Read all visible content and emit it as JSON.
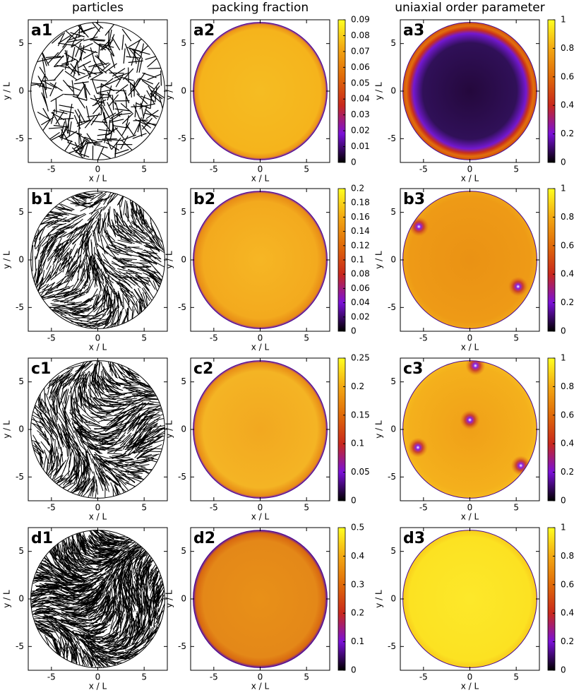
{
  "column_titles": [
    "particles",
    "packing fraction",
    "uniaxial order parameter"
  ],
  "panels": [
    {
      "label": "a1",
      "xlabel": "x / L",
      "ylabel": "y / L",
      "xlim": [
        -7.5,
        7.5
      ],
      "ylim": [
        -7.5,
        7.5
      ],
      "xticks": [
        -5,
        0,
        5
      ],
      "yticks": [
        -5,
        0,
        5
      ]
    },
    {
      "label": "a2",
      "xlabel": "x / L",
      "ylabel": "y / L",
      "xlim": [
        -7.5,
        7.5
      ],
      "ylim": [
        -7.5,
        7.5
      ],
      "xticks": [
        -5,
        0,
        5
      ],
      "yticks": [
        -5,
        0,
        5
      ],
      "clim": [
        0,
        0.09
      ],
      "cticks": [
        0,
        0.01,
        0.02,
        0.03,
        0.04,
        0.05,
        0.06,
        0.07,
        0.08,
        0.09
      ]
    },
    {
      "label": "a3",
      "xlabel": "x / L",
      "ylabel": "y / L",
      "xlim": [
        -7.5,
        7.5
      ],
      "ylim": [
        -7.5,
        7.5
      ],
      "xticks": [
        -5,
        0,
        5
      ],
      "yticks": [
        -5,
        0,
        5
      ],
      "clim": [
        0,
        1
      ],
      "cticks": [
        0,
        0.2,
        0.4,
        0.6,
        0.8,
        1
      ]
    },
    {
      "label": "b1",
      "xlabel": "x / L",
      "ylabel": "y / L",
      "xlim": [
        -7.5,
        7.5
      ],
      "ylim": [
        -7.5,
        7.5
      ],
      "xticks": [
        -5,
        0,
        5
      ],
      "yticks": [
        -5,
        0,
        5
      ]
    },
    {
      "label": "b2",
      "xlabel": "x / L",
      "ylabel": "y / L",
      "xlim": [
        -7.5,
        7.5
      ],
      "ylim": [
        -7.5,
        7.5
      ],
      "xticks": [
        -5,
        0,
        5
      ],
      "yticks": [
        -5,
        0,
        5
      ],
      "clim": [
        0,
        0.2
      ],
      "cticks": [
        0,
        0.02,
        0.04,
        0.06,
        0.08,
        0.1,
        0.12,
        0.14,
        0.16,
        0.18,
        0.2
      ]
    },
    {
      "label": "b3",
      "xlabel": "x / L",
      "ylabel": "y / L",
      "xlim": [
        -7.5,
        7.5
      ],
      "ylim": [
        -7.5,
        7.5
      ],
      "xticks": [
        -5,
        0,
        5
      ],
      "yticks": [
        -5,
        0,
        5
      ],
      "clim": [
        0,
        1
      ],
      "cticks": [
        0,
        0.2,
        0.4,
        0.6,
        0.8,
        1
      ]
    },
    {
      "label": "c1",
      "xlabel": "x / L",
      "ylabel": "y / L",
      "xlim": [
        -7.5,
        7.5
      ],
      "ylim": [
        -7.5,
        7.5
      ],
      "xticks": [
        -5,
        0,
        5
      ],
      "yticks": [
        -5,
        0,
        5
      ]
    },
    {
      "label": "c2",
      "xlabel": "x / L",
      "ylabel": "y / L",
      "xlim": [
        -7.5,
        7.5
      ],
      "ylim": [
        -7.5,
        7.5
      ],
      "xticks": [
        -5,
        0,
        5
      ],
      "yticks": [
        -5,
        0,
        5
      ],
      "clim": [
        0,
        0.25
      ],
      "cticks": [
        0,
        0.05,
        0.1,
        0.15,
        0.2,
        0.25
      ]
    },
    {
      "label": "c3",
      "xlabel": "x / L",
      "ylabel": "y / L",
      "xlim": [
        -7.5,
        7.5
      ],
      "ylim": [
        -7.5,
        7.5
      ],
      "xticks": [
        -5,
        0,
        5
      ],
      "yticks": [
        -5,
        0,
        5
      ],
      "clim": [
        0,
        1
      ],
      "cticks": [
        0,
        0.2,
        0.4,
        0.6,
        0.8,
        1
      ]
    },
    {
      "label": "d1",
      "xlabel": "x / L",
      "ylabel": "y / L",
      "xlim": [
        -7.5,
        7.5
      ],
      "ylim": [
        -7.5,
        7.5
      ],
      "xticks": [
        -5,
        0,
        5
      ],
      "yticks": [
        -5,
        0,
        5
      ]
    },
    {
      "label": "d2",
      "xlabel": "x / L",
      "ylabel": "y / L",
      "xlim": [
        -7.5,
        7.5
      ],
      "ylim": [
        -7.5,
        7.5
      ],
      "xticks": [
        -5,
        0,
        5
      ],
      "yticks": [
        -5,
        0,
        5
      ],
      "clim": [
        0,
        0.5
      ],
      "cticks": [
        0,
        0.1,
        0.2,
        0.3,
        0.4,
        0.5
      ]
    },
    {
      "label": "d3",
      "xlabel": "x / L",
      "ylabel": "y / L",
      "xlim": [
        -7.5,
        7.5
      ],
      "ylim": [
        -7.5,
        7.5
      ],
      "xticks": [
        -5,
        0,
        5
      ],
      "yticks": [
        -5,
        0,
        5
      ],
      "clim": [
        0,
        1
      ],
      "cticks": [
        0,
        0.2,
        0.4,
        0.6,
        0.8,
        1
      ]
    }
  ]
}
